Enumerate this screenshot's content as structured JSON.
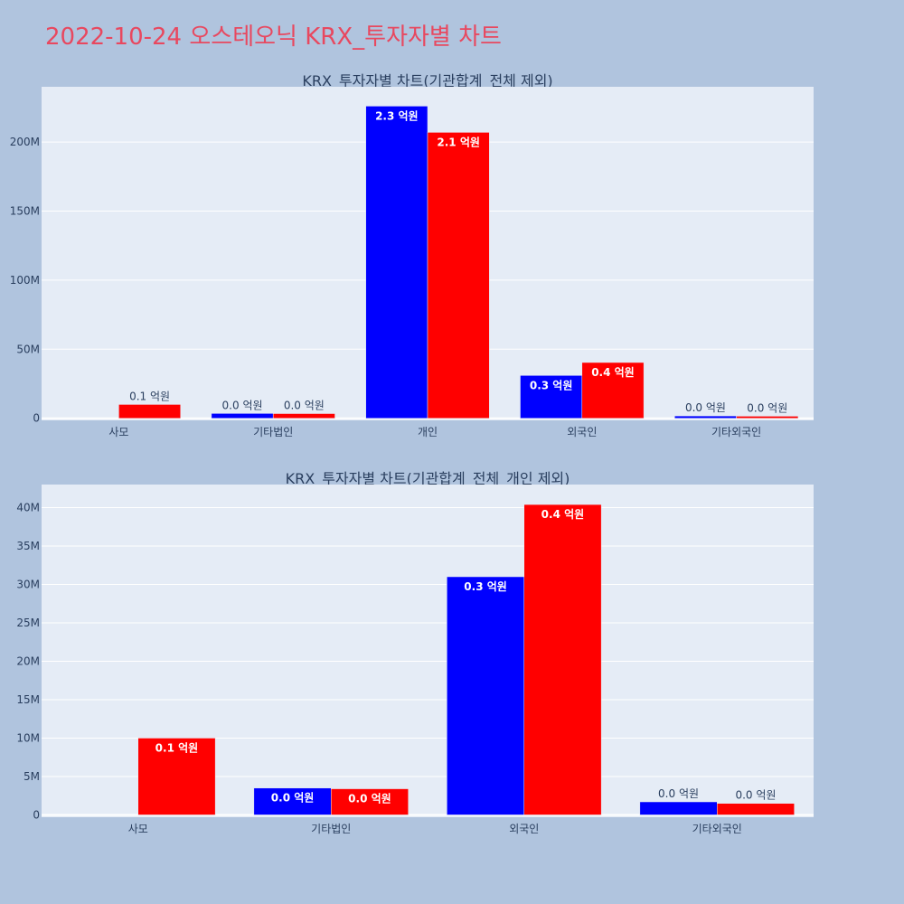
{
  "page_title": "2022-10-24 오스테오닉 KRX_투자자별 차트",
  "colors": {
    "buy": "#0000ff",
    "sell": "#ff0000",
    "plot_bg": "#e5ecf6",
    "paper_bg": "#b0c4de"
  },
  "chart_data": [
    {
      "type": "bar",
      "title": "KRX_투자자별 차트(기관합계_전체 제외)",
      "categories": [
        "사모",
        "기타법인",
        "개인",
        "외국인",
        "기타외국인"
      ],
      "yticks": [
        0,
        50000000,
        100000000,
        150000000,
        200000000
      ],
      "ytick_labels": [
        "0",
        "50M",
        "100M",
        "150M",
        "200M"
      ],
      "ylim": [
        -1500000,
        240000000
      ],
      "series": [
        {
          "color": "#0000ff",
          "values": [
            0,
            3500000,
            226000000,
            31000000,
            1700000
          ],
          "labels": [
            "",
            "0.0 억원",
            "2.3 억원",
            "0.3 억원",
            "0.0 억원"
          ]
        },
        {
          "color": "#ff0000",
          "values": [
            10000000,
            3400000,
            207000000,
            40400000,
            1500000
          ],
          "labels": [
            "0.1 억원",
            "0.0 억원",
            "2.1 억원",
            "0.4 억원",
            "0.0 억원"
          ]
        }
      ]
    },
    {
      "type": "bar",
      "title": "KRX_투자자별 차트(기관합계_전체_개인 제외)",
      "categories": [
        "사모",
        "기타법인",
        "외국인",
        "기타외국인"
      ],
      "yticks": [
        0,
        5000000,
        10000000,
        15000000,
        20000000,
        25000000,
        30000000,
        35000000,
        40000000
      ],
      "ytick_labels": [
        "0",
        "5M",
        "10M",
        "15M",
        "20M",
        "25M",
        "30M",
        "35M",
        "40M"
      ],
      "ylim": [
        -300000,
        43000000
      ],
      "series": [
        {
          "color": "#0000ff",
          "values": [
            0,
            3500000,
            31000000,
            1700000
          ],
          "labels": [
            "",
            "0.0 억원",
            "0.3 억원",
            "0.0 억원"
          ]
        },
        {
          "color": "#ff0000",
          "values": [
            10000000,
            3400000,
            40400000,
            1500000
          ],
          "labels": [
            "0.1 억원",
            "0.0 억원",
            "0.4 억원",
            "0.0 억원"
          ]
        }
      ]
    }
  ]
}
